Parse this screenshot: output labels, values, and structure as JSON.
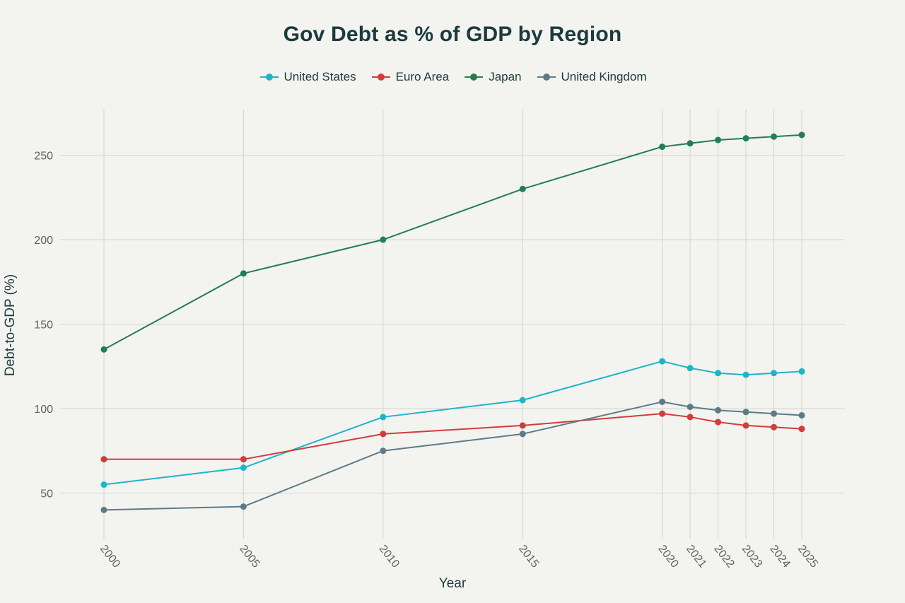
{
  "chart_data": {
    "type": "line",
    "title": "Gov Debt as % of GDP by Region",
    "xlabel": "Year",
    "ylabel": "Debt-to-GDP (%)",
    "x": [
      2000,
      2005,
      2010,
      2015,
      2020,
      2021,
      2022,
      2023,
      2024,
      2025
    ],
    "x_tick_labels": [
      "2000",
      "2005",
      "2010",
      "2015",
      "2020",
      "2021",
      "2022",
      "2023",
      "2024",
      "2025"
    ],
    "y_ticks": [
      50,
      100,
      150,
      200,
      250
    ],
    "xlim": [
      2000,
      2025
    ],
    "ylim": [
      23,
      277
    ],
    "grid": true,
    "legend_position": "top-center",
    "series": [
      {
        "name": "United States",
        "color": "#1fb5c8",
        "values": [
          55,
          65,
          95,
          105,
          128,
          124,
          121,
          120,
          121,
          122
        ]
      },
      {
        "name": "Euro Area",
        "color": "#d13c3c",
        "values": [
          70,
          70,
          85,
          90,
          97,
          95,
          92,
          90,
          89,
          88
        ]
      },
      {
        "name": "Japan",
        "color": "#237f52",
        "values": [
          135,
          180,
          200,
          230,
          255,
          257,
          259,
          260,
          261,
          262
        ]
      },
      {
        "name": "United Kingdom",
        "color": "#5d7b87",
        "values": [
          40,
          42,
          75,
          85,
          104,
          101,
          99,
          98,
          97,
          96
        ]
      }
    ]
  }
}
